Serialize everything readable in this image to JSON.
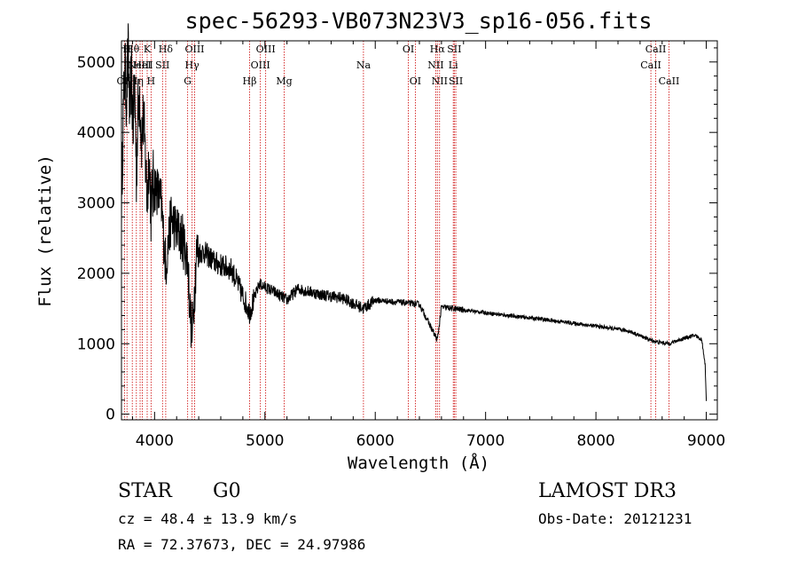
{
  "chart_data": {
    "type": "line",
    "title": "spec-56293-VB073N23V3_sp16-056.fits",
    "xlabel": "Wavelength (Å)",
    "ylabel": "Flux (relative)",
    "xlim": [
      3700,
      9100
    ],
    "ylim": [
      -80,
      5300
    ],
    "x_ticks": [
      4000,
      5000,
      6000,
      7000,
      8000,
      9000
    ],
    "y_ticks": [
      0,
      1000,
      2000,
      3000,
      4000,
      5000
    ],
    "spectrum_anchors": [
      [
        3700,
        3000
      ],
      [
        3715,
        4200
      ],
      [
        3730,
        4900
      ],
      [
        3745,
        4500
      ],
      [
        3760,
        5100
      ],
      [
        3775,
        4300
      ],
      [
        3790,
        4800
      ],
      [
        3805,
        4100
      ],
      [
        3820,
        4700
      ],
      [
        3835,
        3400
      ],
      [
        3850,
        4300
      ],
      [
        3865,
        4600
      ],
      [
        3880,
        3900
      ],
      [
        3900,
        4200
      ],
      [
        3920,
        3500
      ],
      [
        3933,
        3000
      ],
      [
        3950,
        3700
      ],
      [
        3968,
        2900
      ],
      [
        3990,
        3300
      ],
      [
        4020,
        3200
      ],
      [
        4060,
        3000
      ],
      [
        4101,
        2100
      ],
      [
        4150,
        2800
      ],
      [
        4200,
        2600
      ],
      [
        4250,
        2500
      ],
      [
        4300,
        2200
      ],
      [
        4320,
        1500
      ],
      [
        4340,
        1100
      ],
      [
        4380,
        2300
      ],
      [
        4450,
        2300
      ],
      [
        4550,
        2150
      ],
      [
        4700,
        2050
      ],
      [
        4861,
        1450
      ],
      [
        4950,
        1850
      ],
      [
        5100,
        1720
      ],
      [
        5200,
        1620
      ],
      [
        5300,
        1780
      ],
      [
        5500,
        1700
      ],
      [
        5700,
        1650
      ],
      [
        5893,
        1500
      ],
      [
        6000,
        1620
      ],
      [
        6200,
        1590
      ],
      [
        6400,
        1560
      ],
      [
        6563,
        1050
      ],
      [
        6600,
        1520
      ],
      [
        6800,
        1480
      ],
      [
        7000,
        1440
      ],
      [
        7200,
        1400
      ],
      [
        7500,
        1350
      ],
      [
        7800,
        1290
      ],
      [
        8000,
        1250
      ],
      [
        8300,
        1180
      ],
      [
        8498,
        1050
      ],
      [
        8542,
        1030
      ],
      [
        8662,
        1000
      ],
      [
        8800,
        1080
      ],
      [
        8900,
        1120
      ],
      [
        8960,
        1050
      ],
      [
        8990,
        700
      ],
      [
        9000,
        200
      ]
    ],
    "lines": [
      {
        "wavelength": 3727,
        "label": "OII",
        "row": 3
      },
      {
        "wavelength": 3750,
        "label": "H",
        "row": 1
      },
      {
        "wavelength": 3798,
        "label": "Hθ",
        "row": 1
      },
      {
        "wavelength": 3835,
        "label": "Hη",
        "row": 3
      },
      {
        "wavelength": 3869,
        "label": "NeIII",
        "row": 2
      },
      {
        "wavelength": 3889,
        "label": "HeI",
        "row": 2
      },
      {
        "wavelength": 3933,
        "label": "K",
        "row": 1
      },
      {
        "wavelength": 3968,
        "label": "H",
        "row": 3
      },
      {
        "wavelength": 4072,
        "label": "SII",
        "row": 2
      },
      {
        "wavelength": 4101,
        "label": "Hδ",
        "row": 1
      },
      {
        "wavelength": 4300,
        "label": "G",
        "row": 3
      },
      {
        "wavelength": 4340,
        "label": "Hγ",
        "row": 2
      },
      {
        "wavelength": 4363,
        "label": "OIII",
        "row": 1
      },
      {
        "wavelength": 4861,
        "label": "Hβ",
        "row": 3
      },
      {
        "wavelength": 4959,
        "label": "OIII",
        "row": 2
      },
      {
        "wavelength": 5007,
        "label": "OIII",
        "row": 1
      },
      {
        "wavelength": 5175,
        "label": "Mg",
        "row": 3
      },
      {
        "wavelength": 5893,
        "label": "Na",
        "row": 2
      },
      {
        "wavelength": 6300,
        "label": "OI",
        "row": 1
      },
      {
        "wavelength": 6363,
        "label": "OI",
        "row": 3
      },
      {
        "wavelength": 6548,
        "label": "NII",
        "row": 2
      },
      {
        "wavelength": 6563,
        "label": "Hα",
        "row": 1
      },
      {
        "wavelength": 6583,
        "label": "NII",
        "row": 3
      },
      {
        "wavelength": 6707,
        "label": "Li",
        "row": 2
      },
      {
        "wavelength": 6716,
        "label": "SII",
        "row": 1
      },
      {
        "wavelength": 6730,
        "label": "SII",
        "row": 3
      },
      {
        "wavelength": 8498,
        "label": "CaII",
        "row": 2
      },
      {
        "wavelength": 8542,
        "label": "CaII",
        "row": 1
      },
      {
        "wavelength": 8662,
        "label": "CaII",
        "row": 3
      }
    ],
    "colors": {
      "spectrum": "#000000",
      "lines": "#cc0000",
      "axes": "#000000"
    }
  },
  "info": {
    "class": "STAR",
    "subclass": "G0",
    "survey": "LAMOST DR3",
    "cz": "cz = 48.4 ± 13.9 km/s",
    "obs_date": "Obs-Date: 20121231",
    "coords": "RA =  72.37673, DEC =  24.97986"
  }
}
